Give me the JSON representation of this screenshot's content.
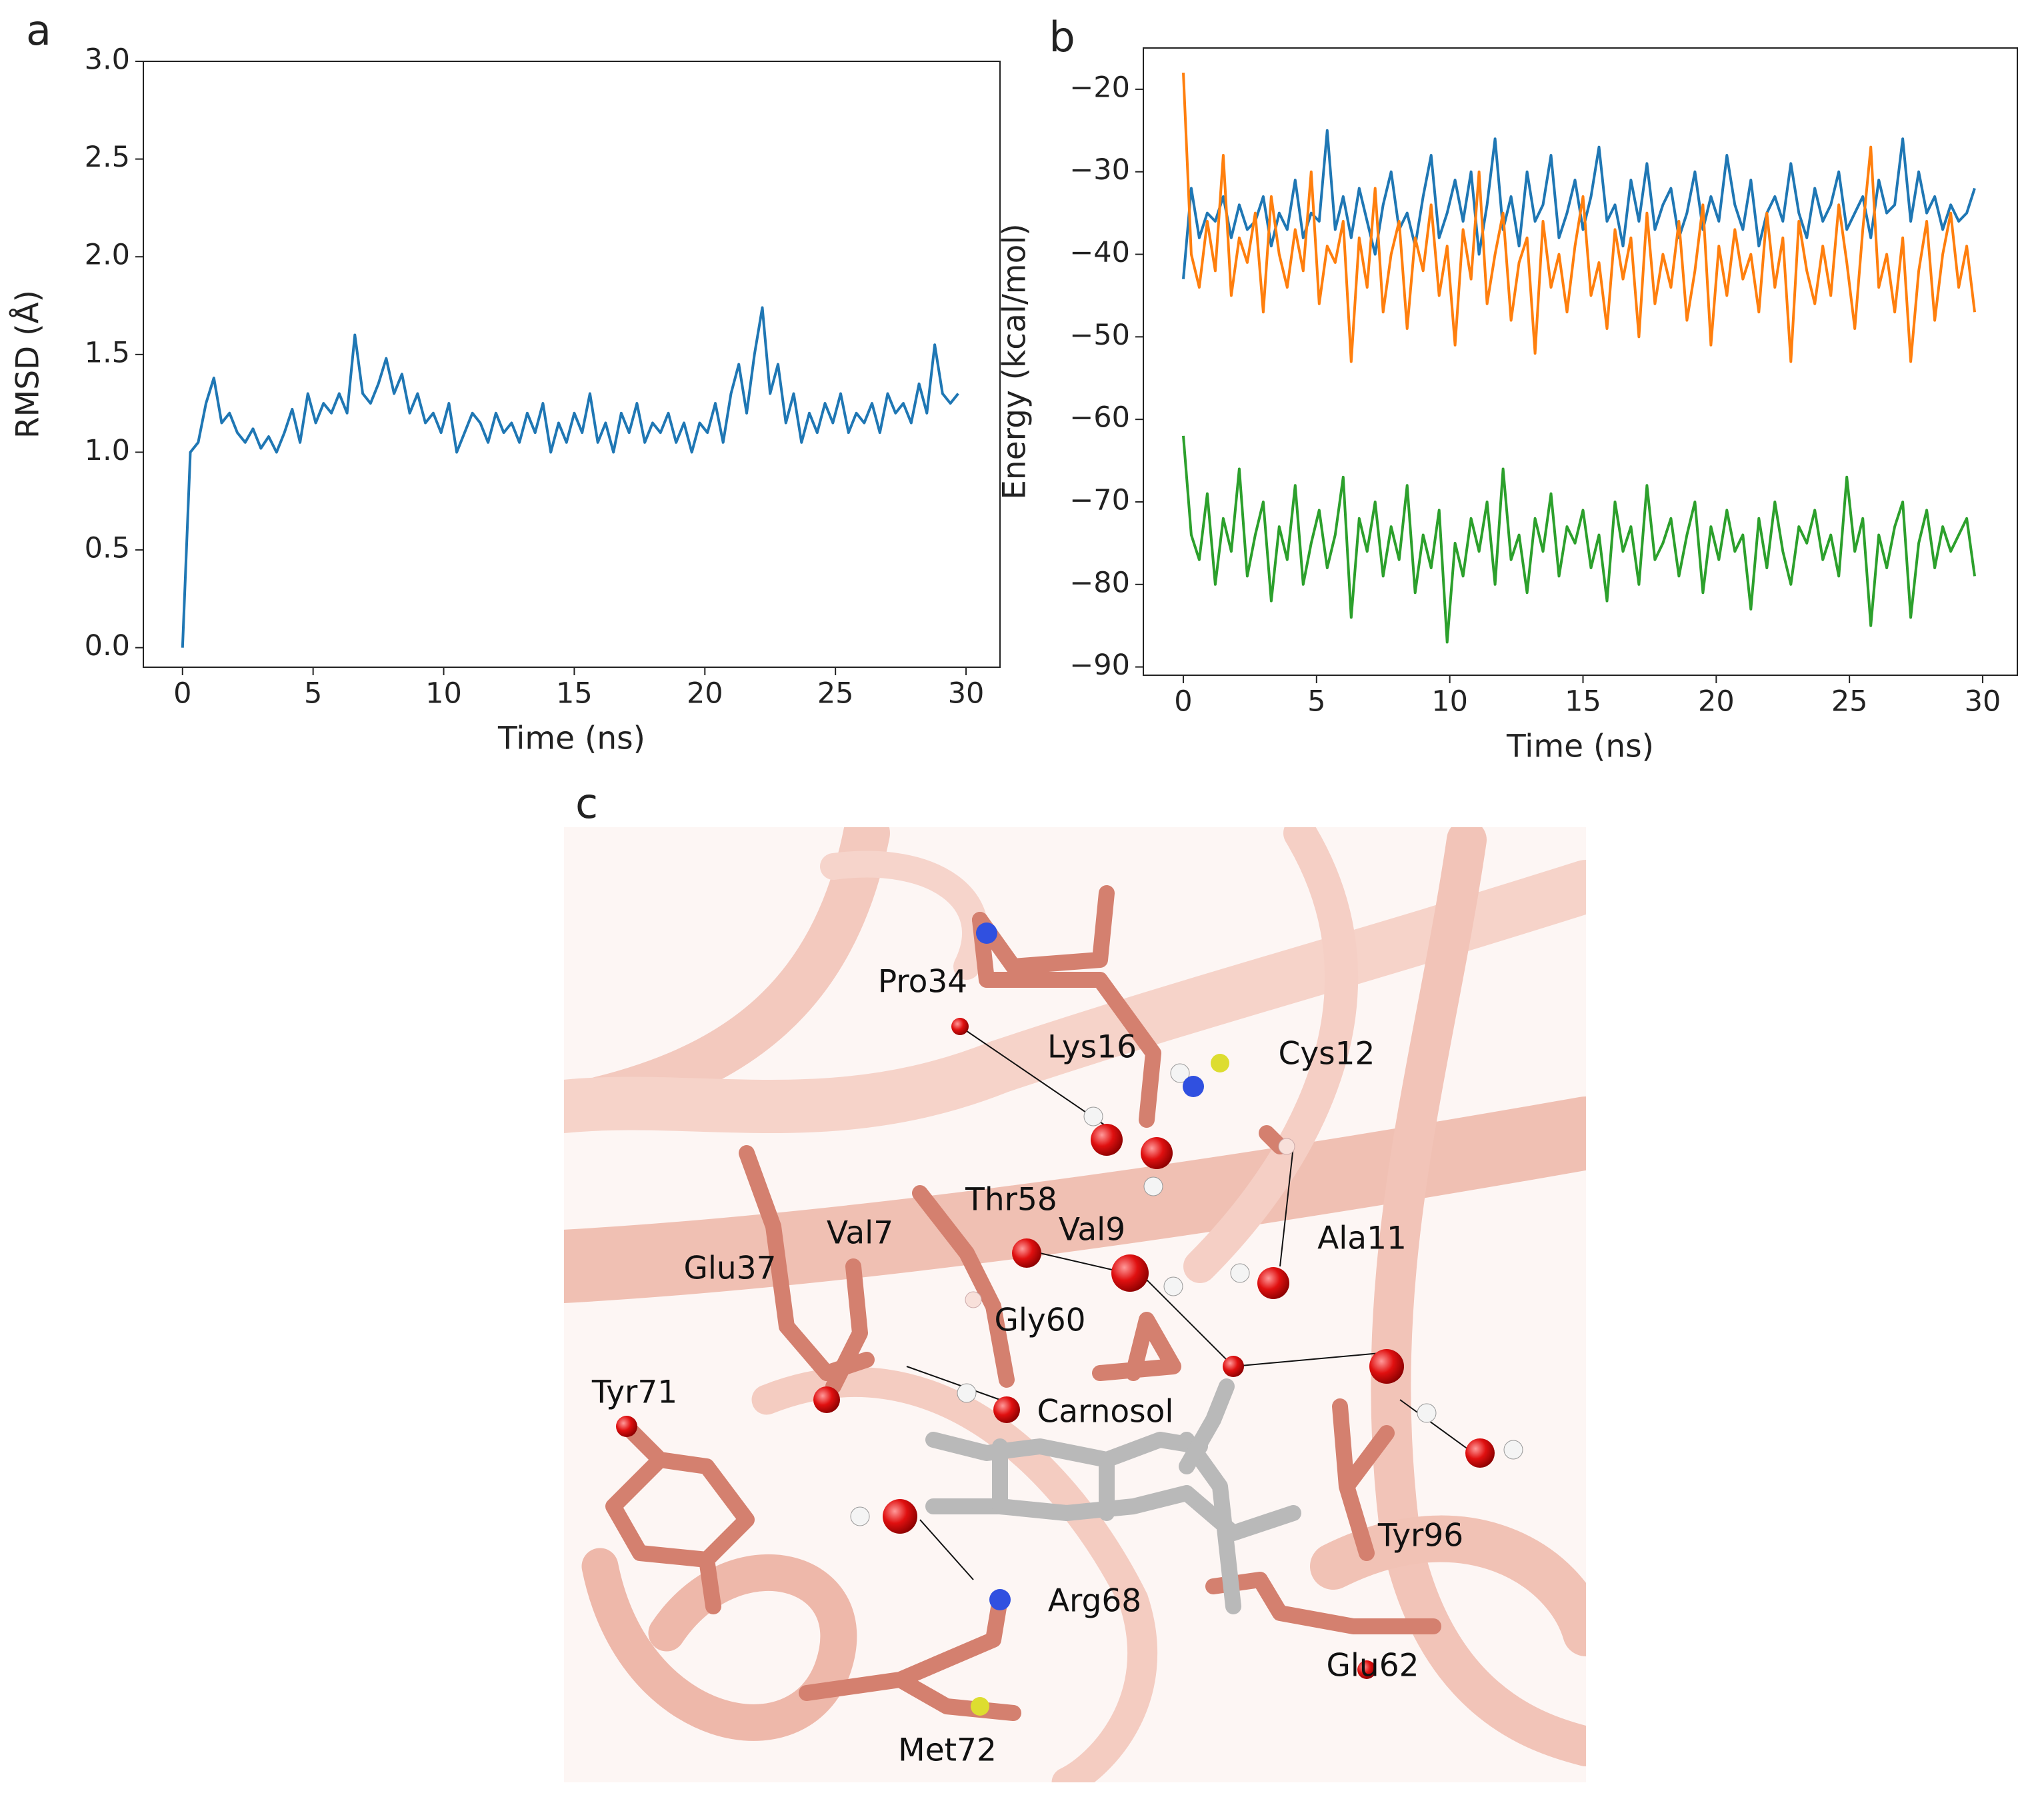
{
  "chart_data": [
    {
      "type": "line",
      "panel_label": "a",
      "x_label": "Time (ns)",
      "y_label": "RMSD (Å)",
      "x": [
        0,
        0.3,
        0.6,
        0.9,
        1.2,
        1.5,
        1.8,
        2.1,
        2.4,
        2.7,
        3,
        3.3,
        3.6,
        3.9,
        4.2,
        4.5,
        4.8,
        5.1,
        5.4,
        5.7,
        6,
        6.3,
        6.6,
        6.9,
        7.2,
        7.5,
        7.8,
        8.1,
        8.4,
        8.7,
        9,
        9.3,
        9.6,
        9.9,
        10.2,
        10.5,
        10.8,
        11.1,
        11.4,
        11.7,
        12,
        12.3,
        12.6,
        12.9,
        13.2,
        13.5,
        13.8,
        14.1,
        14.4,
        14.7,
        15,
        15.3,
        15.6,
        15.9,
        16.2,
        16.5,
        16.8,
        17.1,
        17.4,
        17.7,
        18,
        18.3,
        18.6,
        18.9,
        19.2,
        19.5,
        19.8,
        20.1,
        20.4,
        20.7,
        21,
        21.3,
        21.6,
        21.9,
        22.2,
        22.5,
        22.8,
        23.1,
        23.4,
        23.7,
        24,
        24.3,
        24.6,
        24.9,
        25.2,
        25.5,
        25.8,
        26.1,
        26.4,
        26.7,
        27,
        27.3,
        27.6,
        27.9,
        28.2,
        28.5,
        28.8,
        29.1,
        29.4,
        29.7
      ],
      "color": "#1f77b4",
      "values": [
        0,
        1.0,
        1.05,
        1.25,
        1.38,
        1.15,
        1.2,
        1.1,
        1.05,
        1.12,
        1.02,
        1.08,
        1.0,
        1.1,
        1.22,
        1.05,
        1.3,
        1.15,
        1.25,
        1.2,
        1.3,
        1.2,
        1.6,
        1.3,
        1.25,
        1.35,
        1.48,
        1.3,
        1.4,
        1.2,
        1.3,
        1.15,
        1.2,
        1.1,
        1.25,
        1.0,
        1.1,
        1.2,
        1.15,
        1.05,
        1.2,
        1.1,
        1.15,
        1.05,
        1.2,
        1.1,
        1.25,
        1.0,
        1.15,
        1.05,
        1.2,
        1.1,
        1.3,
        1.05,
        1.15,
        1.0,
        1.2,
        1.1,
        1.25,
        1.05,
        1.15,
        1.1,
        1.2,
        1.05,
        1.15,
        1.0,
        1.15,
        1.1,
        1.25,
        1.05,
        1.3,
        1.45,
        1.2,
        1.5,
        1.74,
        1.3,
        1.45,
        1.15,
        1.3,
        1.05,
        1.2,
        1.1,
        1.25,
        1.15,
        1.3,
        1.1,
        1.2,
        1.15,
        1.25,
        1.1,
        1.3,
        1.2,
        1.25,
        1.15,
        1.35,
        1.2,
        1.55,
        1.3,
        1.25,
        1.3
      ],
      "xlim": [
        -1.5,
        31.3
      ],
      "ylim": [
        -0.1,
        3.0
      ],
      "xticks": [
        0,
        5,
        10,
        15,
        20,
        25,
        30
      ],
      "yticks": [
        {
          "value": 0,
          "label": "0.0"
        },
        0.5,
        {
          "value": 1,
          "label": "1.0"
        },
        1.5,
        {
          "value": 2,
          "label": "2.0"
        },
        2.5,
        {
          "value": 3,
          "label": "3.0"
        }
      ]
    },
    {
      "type": "line",
      "panel_label": "b",
      "x_label": "Time (ns)",
      "y_label": "Energy (kcal/mol)",
      "x": [
        0,
        0.3,
        0.6,
        0.9,
        1.2,
        1.5,
        1.8,
        2.1,
        2.4,
        2.7,
        3,
        3.3,
        3.6,
        3.9,
        4.2,
        4.5,
        4.8,
        5.1,
        5.4,
        5.7,
        6,
        6.3,
        6.6,
        6.9,
        7.2,
        7.5,
        7.8,
        8.1,
        8.4,
        8.7,
        9,
        9.3,
        9.6,
        9.9,
        10.2,
        10.5,
        10.8,
        11.1,
        11.4,
        11.7,
        12,
        12.3,
        12.6,
        12.9,
        13.2,
        13.5,
        13.8,
        14.1,
        14.4,
        14.7,
        15,
        15.3,
        15.6,
        15.9,
        16.2,
        16.5,
        16.8,
        17.1,
        17.4,
        17.7,
        18,
        18.3,
        18.6,
        18.9,
        19.2,
        19.5,
        19.8,
        20.1,
        20.4,
        20.7,
        21,
        21.3,
        21.6,
        21.9,
        22.2,
        22.5,
        22.8,
        23.1,
        23.4,
        23.7,
        24,
        24.3,
        24.6,
        24.9,
        25.2,
        25.5,
        25.8,
        26.1,
        26.4,
        26.7,
        27,
        27.3,
        27.6,
        27.9,
        28.2,
        28.5,
        28.8,
        29.1,
        29.4,
        29.7
      ],
      "series": [
        {
          "color": "#1f77b4",
          "values": [
            -43,
            -32,
            -38,
            -35,
            -36,
            -33,
            -38,
            -34,
            -37,
            -36,
            -33,
            -39,
            -35,
            -37,
            -31,
            -38,
            -35,
            -36,
            -25,
            -37,
            -33,
            -38,
            -32,
            -36,
            -40,
            -34,
            -30,
            -37,
            -35,
            -39,
            -33,
            -28,
            -38,
            -35,
            -31,
            -36,
            -30,
            -40,
            -34,
            -26,
            -37,
            -33,
            -39,
            -30,
            -36,
            -34,
            -28,
            -38,
            -35,
            -31,
            -37,
            -33,
            -27,
            -36,
            -34,
            -39,
            -31,
            -36,
            -29,
            -37,
            -34,
            -32,
            -38,
            -35,
            -30,
            -37,
            -33,
            -36,
            -28,
            -34,
            -37,
            -31,
            -39,
            -35,
            -33,
            -36,
            -29,
            -35,
            -38,
            -32,
            -36,
            -34,
            -30,
            -37,
            -35,
            -33,
            -38,
            -31,
            -35,
            -34,
            -26,
            -36,
            -30,
            -35,
            -33,
            -37,
            -34,
            -36,
            -35,
            -32
          ]
        },
        {
          "color": "#ff7f0e",
          "values": [
            -18,
            -40,
            -44,
            -36,
            -42,
            -28,
            -45,
            -38,
            -41,
            -35,
            -47,
            -33,
            -40,
            -44,
            -37,
            -42,
            -30,
            -46,
            -39,
            -41,
            -36,
            -53,
            -38,
            -44,
            -32,
            -47,
            -40,
            -36,
            -49,
            -38,
            -42,
            -34,
            -45,
            -39,
            -51,
            -37,
            -43,
            -30,
            -46,
            -40,
            -35,
            -48,
            -41,
            -38,
            -52,
            -36,
            -44,
            -40,
            -47,
            -39,
            -33,
            -45,
            -41,
            -49,
            -37,
            -43,
            -38,
            -50,
            -35,
            -46,
            -40,
            -44,
            -36,
            -48,
            -42,
            -34,
            -51,
            -39,
            -45,
            -37,
            -43,
            -40,
            -47,
            -35,
            -44,
            -38,
            -53,
            -36,
            -42,
            -46,
            -39,
            -45,
            -34,
            -41,
            -49,
            -37,
            -27,
            -44,
            -40,
            -47,
            -38,
            -53,
            -42,
            -36,
            -48,
            -40,
            -35,
            -44,
            -39,
            -47
          ]
        },
        {
          "color": "#2ca02c",
          "values": [
            -62,
            -74,
            -77,
            -69,
            -80,
            -72,
            -76,
            -66,
            -79,
            -74,
            -70,
            -82,
            -73,
            -77,
            -68,
            -80,
            -75,
            -71,
            -78,
            -74,
            -67,
            -84,
            -72,
            -76,
            -70,
            -79,
            -73,
            -77,
            -68,
            -81,
            -74,
            -78,
            -71,
            -87,
            -75,
            -79,
            -72,
            -76,
            -70,
            -80,
            -66,
            -77,
            -74,
            -81,
            -72,
            -76,
            -69,
            -79,
            -73,
            -75,
            -71,
            -78,
            -74,
            -82,
            -70,
            -76,
            -73,
            -80,
            -68,
            -77,
            -75,
            -72,
            -79,
            -74,
            -70,
            -81,
            -73,
            -77,
            -71,
            -76,
            -74,
            -83,
            -72,
            -78,
            -70,
            -76,
            -80,
            -73,
            -75,
            -71,
            -77,
            -74,
            -79,
            -67,
            -76,
            -72,
            -85,
            -74,
            -78,
            -73,
            -70,
            -84,
            -75,
            -71,
            -78,
            -73,
            -76,
            -74,
            -72,
            -79
          ]
        }
      ],
      "xlim": [
        -1.5,
        31.3
      ],
      "ylim": [
        -91,
        -15
      ],
      "xticks": [
        0,
        5,
        10,
        15,
        20,
        25,
        30
      ],
      "yticks": [
        {
          "value": -90,
          "label": "−90"
        },
        {
          "value": -80,
          "label": "−80"
        },
        {
          "value": -70,
          "label": "−70"
        },
        {
          "value": -60,
          "label": "−60"
        },
        {
          "value": -50,
          "label": "−50"
        },
        {
          "value": -40,
          "label": "−40"
        },
        {
          "value": -30,
          "label": "−30"
        },
        {
          "value": -20,
          "label": "−20"
        }
      ]
    }
  ],
  "panel_c": {
    "label": "c",
    "residues": [
      "Pro34",
      "Lys16",
      "Cys12",
      "Thr58",
      "Val9",
      "Ala11",
      "Val7",
      "Glu37",
      "Gly60",
      "Tyr71",
      "Carnosol",
      "Tyr96",
      "Arg68",
      "Glu62",
      "Met72"
    ]
  }
}
